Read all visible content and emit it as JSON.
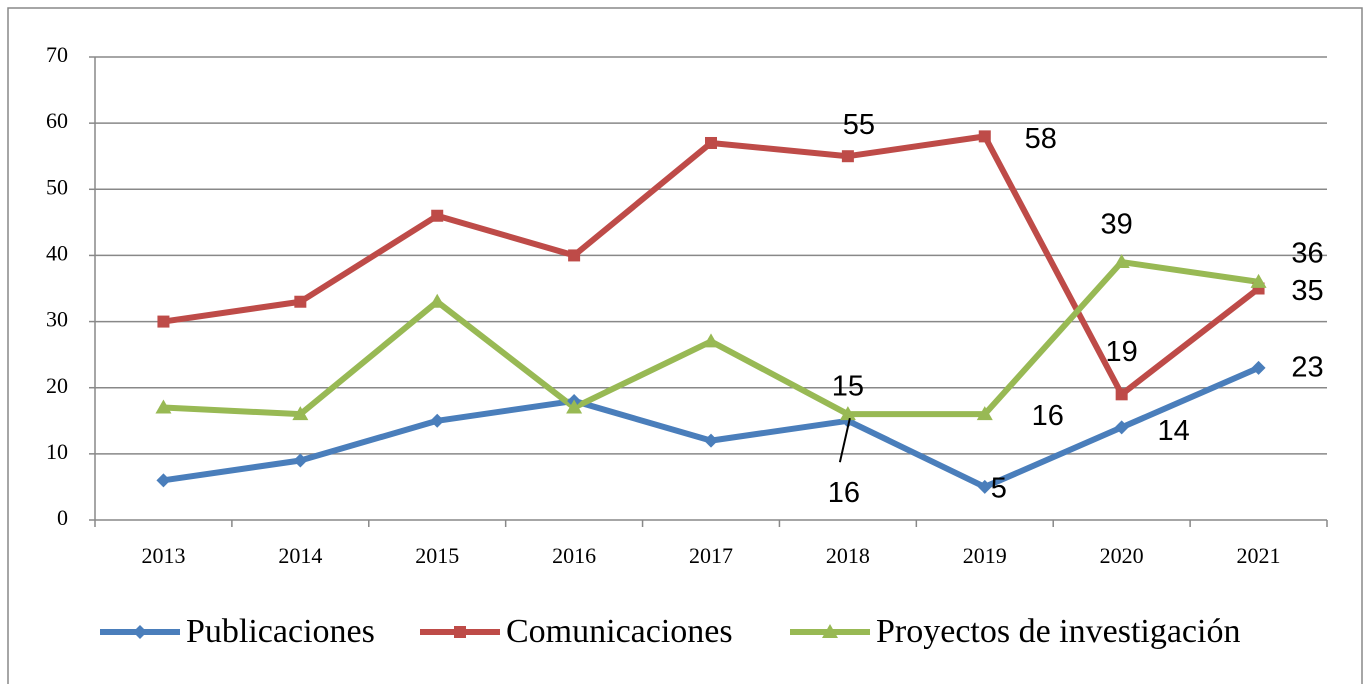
{
  "chart_data": {
    "type": "line",
    "categories": [
      "2013",
      "2014",
      "2015",
      "2016",
      "2017",
      "2018",
      "2019",
      "2020",
      "2021"
    ],
    "series": [
      {
        "name": "Publicaciones",
        "color": "#4a7ebb",
        "values": [
          6,
          9,
          15,
          18,
          12,
          15,
          5,
          14,
          23
        ]
      },
      {
        "name": "Comunicaciones",
        "color": "#be4b48",
        "values": [
          30,
          33,
          46,
          40,
          57,
          55,
          58,
          19,
          35
        ]
      },
      {
        "name": "Proyectos de investigación",
        "color": "#98b954",
        "values": [
          17,
          16,
          33,
          17,
          27,
          16,
          16,
          39,
          36
        ]
      }
    ],
    "ylim": [
      0,
      70
    ],
    "yticks": [
      0,
      10,
      20,
      30,
      40,
      50,
      60,
      70
    ],
    "grid": true,
    "legend": "bottom"
  }
}
